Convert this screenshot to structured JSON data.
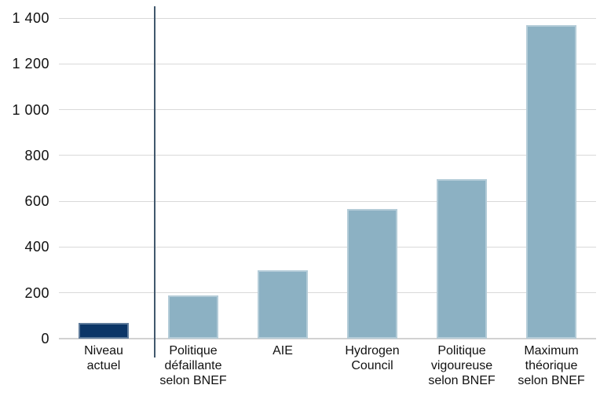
{
  "chart_data": {
    "type": "bar",
    "title": "",
    "xlabel": "",
    "ylabel": "",
    "categories": [
      "Niveau actuel",
      "Politique défaillante selon BNEF",
      "AIE",
      "Hydrogen Council",
      "Politique vigoureuse selon BNEF",
      "Maximum théorique selon BNEF"
    ],
    "category_lines": [
      [
        "Niveau",
        "actuel"
      ],
      [
        "Politique",
        "défaillante",
        "selon BNEF"
      ],
      [
        "AIE"
      ],
      [
        "Hydrogen",
        "Council"
      ],
      [
        "Politique",
        "vigoureuse",
        "selon BNEF"
      ],
      [
        "Maximum",
        "théorique",
        "selon BNEF"
      ]
    ],
    "values": [
      70,
      190,
      300,
      565,
      695,
      1370
    ],
    "bar_colors": [
      "#0c3667",
      "#8cb1c3",
      "#8cb1c3",
      "#8cb1c3",
      "#8cb1c3",
      "#8cb1c3"
    ],
    "ylim": [
      0,
      1400
    ],
    "ytick_interval": 200,
    "ytick_labels": [
      "0",
      "200",
      "400",
      "600",
      "800",
      "1 000",
      "1 200",
      "1 400"
    ],
    "grid": true,
    "legend": false,
    "separator_after_first_category": true
  },
  "colors": {
    "gridline": "#d9d9d9",
    "axis": "#d2d2d2",
    "separator": "#41586d",
    "text": "#111111",
    "background": "#ffffff",
    "bar_current": "#0c3667",
    "bar_scenario": "#8cb1c3"
  }
}
